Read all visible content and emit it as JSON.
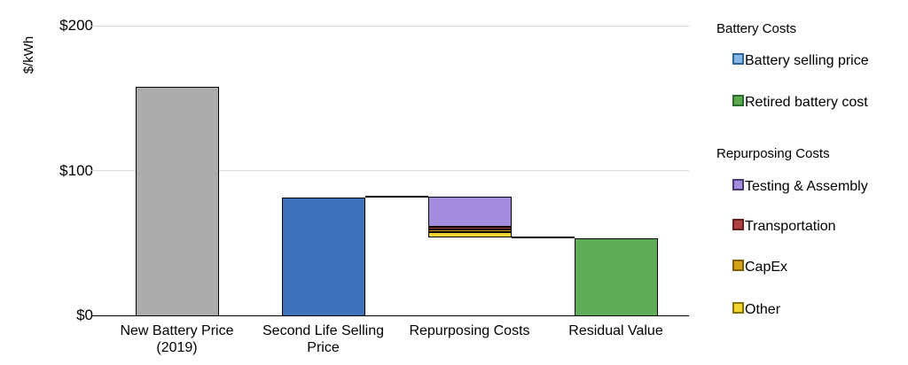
{
  "chart_data": {
    "type": "bar",
    "subtype": "waterfall-stacked",
    "title": "",
    "ylabel": "$/kWh",
    "xlabel": "",
    "ylim": [
      0,
      200
    ],
    "grid": "horizontal",
    "legend_position": "right",
    "colors": {
      "gridline": "#D9D9D9",
      "axis": "#000000",
      "new_battery": "#ACACAC",
      "battery_selling_price": "#3E70B9",
      "retired_battery_cost": "#5FAD58",
      "testing_assembly": "#A48CDE",
      "transportation": "#9E3A3C",
      "capex": "#CB9A1C",
      "other": "#F1D32F"
    },
    "yticks": [
      {
        "value": 0,
        "label": "$0"
      },
      {
        "value": 100,
        "label": "$100"
      },
      {
        "value": 200,
        "label": "$200"
      }
    ],
    "categories": [
      "New Battery Price (2019)",
      "Second Life Selling Price",
      "Repurposing Costs",
      "Residual Value"
    ],
    "bars": [
      {
        "category": "New Battery Price (2019)",
        "label_lines": [
          "New Battery Price",
          "(2019)"
        ],
        "base": 0,
        "segments": [
          {
            "name": "New Battery Price",
            "value": 158,
            "color": "#ACACAC"
          }
        ]
      },
      {
        "category": "Second Life Selling Price",
        "label_lines": [
          "Second Life Selling",
          "Price"
        ],
        "base": 0,
        "segments": [
          {
            "name": "Battery selling price",
            "value": 82,
            "color": "#3E70B9"
          }
        ]
      },
      {
        "category": "Repurposing Costs",
        "label_lines": [
          "Repurposing Costs"
        ],
        "base": 54,
        "segments": [
          {
            "name": "Other",
            "value": 3.5,
            "color": "#F1D32F"
          },
          {
            "name": "CapEx",
            "value": 1.5,
            "color": "#CB9A1C"
          },
          {
            "name": "Transportation",
            "value": 2,
            "color": "#9E3A3C"
          },
          {
            "name": "Testing & Assembly",
            "value": 21,
            "color": "#A48CDE"
          }
        ]
      },
      {
        "category": "Residual Value",
        "label_lines": [
          "Residual Value"
        ],
        "base": 0,
        "segments": [
          {
            "name": "Retired battery cost",
            "value": 54,
            "color": "#5FAD58"
          }
        ]
      }
    ],
    "connectors": [
      {
        "value": 82,
        "from_bar": 1,
        "to_bar": 2
      },
      {
        "value": 54,
        "from_bar": 2,
        "to_bar": 3
      }
    ]
  },
  "legend": {
    "groups": [
      {
        "header": "Battery Costs",
        "items": [
          {
            "label": "Battery selling price",
            "fill": "#85B7E4",
            "border": "#31639C"
          },
          {
            "label": "Retired battery cost",
            "fill": "#5BAA4C",
            "border": "#2D6A2D"
          }
        ]
      },
      {
        "header": "Repurposing Costs",
        "items": [
          {
            "label": "Testing & Assembly",
            "fill": "#A48CDE",
            "border": "#453A70"
          },
          {
            "label": "Transportation",
            "fill": "#B04040",
            "border": "#641E1E"
          },
          {
            "label": "CapEx",
            "fill": "#D2A118",
            "border": "#7F6000"
          },
          {
            "label": "Other",
            "fill": "#F2D430",
            "border": "#877200"
          }
        ]
      }
    ]
  }
}
